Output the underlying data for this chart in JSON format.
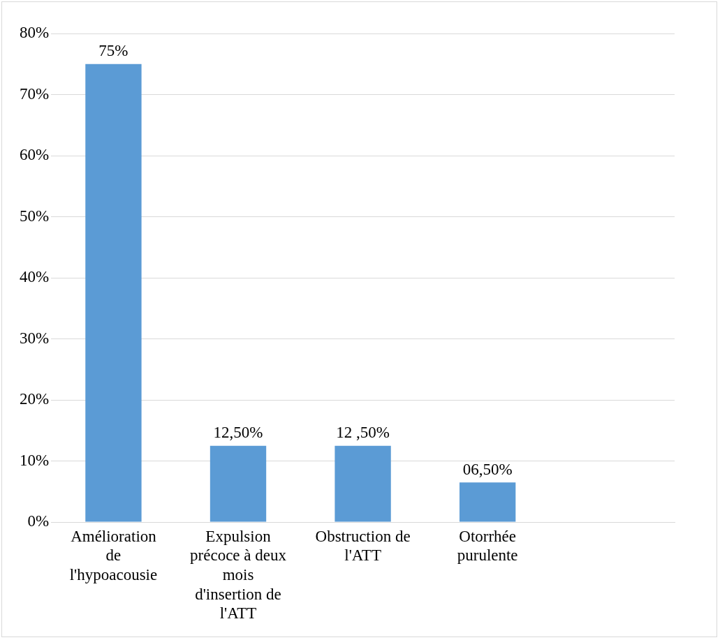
{
  "chart_data": {
    "type": "bar",
    "categories": [
      "Amélioration de l'hypoacousie",
      "Expulsion précoce à deux mois d'insertion de l'ATT",
      "Obstruction de l'ATT",
      "Otorrhée purulente",
      null
    ],
    "values": [
      75,
      12.5,
      12.5,
      6.5,
      null
    ],
    "value_labels": [
      "75%",
      "12,50%",
      "12 ,50%",
      "06,50%",
      null
    ],
    "color": "#5b9bd5",
    "ylim": [
      0,
      80
    ],
    "yticks": [
      {
        "value": 0,
        "label": "0%"
      },
      {
        "value": 10,
        "label": "10%"
      },
      {
        "value": 20,
        "label": "20%"
      },
      {
        "value": 30,
        "label": "30%"
      },
      {
        "value": 40,
        "label": "40%"
      },
      {
        "value": 50,
        "label": "50%"
      },
      {
        "value": 60,
        "label": "60%"
      },
      {
        "value": 70,
        "label": "70%"
      },
      {
        "value": 80,
        "label": "80%"
      }
    ],
    "grid": "y",
    "legend": false
  }
}
